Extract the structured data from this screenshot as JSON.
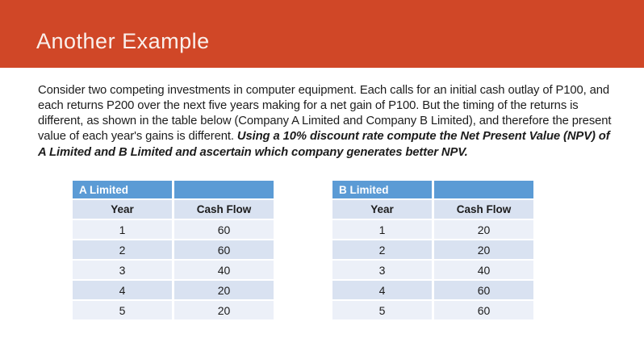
{
  "slide": {
    "title": "Another Example",
    "body": {
      "text_normal": "Consider two competing investments in computer equipment. Each calls for an initial cash outlay of P100, and each returns P200 over the next five years making for a net gain of P100. But the timing of the returns is different, as shown in the table below (Company A Limited and Company B Limited), and therefore the present value of each year's gains is different. ",
      "text_emphasis": "Using a 10% discount rate compute the Net Present Value (NPV) of A Limited and B Limited and ascertain which company generates better NPV."
    },
    "colors": {
      "header_bg": "#D04727",
      "title_text": "#FAF0EC",
      "body_text": "#1C1C1C",
      "table_accent": "#5B9BD5",
      "band_dark": "#D9E2F1",
      "band_light": "#ECF0F8"
    },
    "tables": [
      {
        "name": "A Limited",
        "columns": [
          "Year",
          "Cash Flow"
        ],
        "rows": [
          [
            "1",
            "60"
          ],
          [
            "2",
            "60"
          ],
          [
            "3",
            "40"
          ],
          [
            "4",
            "20"
          ],
          [
            "5",
            "20"
          ]
        ]
      },
      {
        "name": "B Limited",
        "columns": [
          "Year",
          "Cash Flow"
        ],
        "rows": [
          [
            "1",
            "20"
          ],
          [
            "2",
            "20"
          ],
          [
            "3",
            "40"
          ],
          [
            "4",
            "60"
          ],
          [
            "5",
            "60"
          ]
        ]
      }
    ]
  }
}
